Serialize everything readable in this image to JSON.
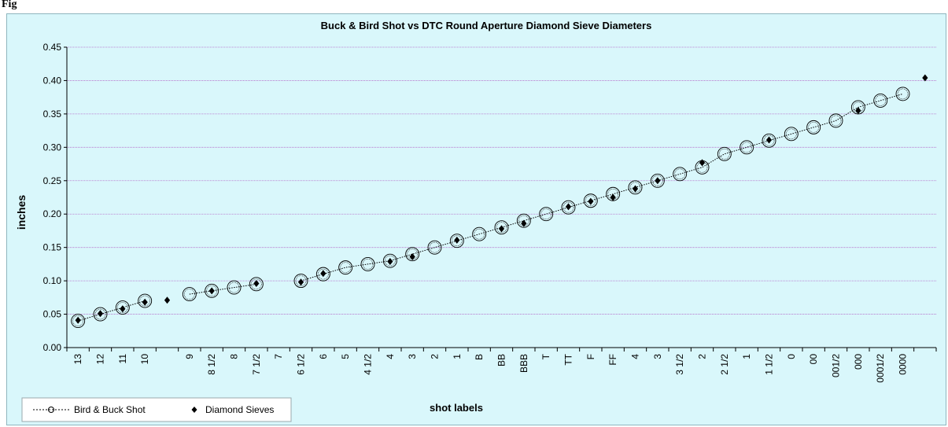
{
  "figure_label": "Fig",
  "chart_data": {
    "type": "line",
    "title": "Buck & Bird Shot vs DTC Round Aperture Diamond Sieve Diameters",
    "xlabel": "shot labels",
    "ylabel": "inches",
    "ylim": [
      0,
      0.45
    ],
    "y_ticks": [
      "0.00",
      "0.05",
      "0.10",
      "0.15",
      "0.20",
      "0.25",
      "0.30",
      "0.35",
      "0.40",
      "0.45"
    ],
    "grid": "horizontal",
    "legend_position": "bottom-left",
    "categories": [
      "13",
      "12",
      "11",
      "10",
      "",
      "9",
      "8 1/2",
      "8",
      "7 1/2",
      "7",
      "6 1/2",
      "6",
      "5",
      "4 1/2",
      "4",
      "3",
      "2",
      "1",
      "B",
      "BB",
      "BBB",
      "T",
      "TT",
      "F",
      "FF",
      "4",
      "3",
      "3 1/2",
      "2",
      "2 1/2",
      "1",
      "1 1/2",
      "0",
      "00",
      "001/2",
      "000",
      "0001/2",
      "0000",
      ""
    ],
    "series": [
      {
        "name": "Bird & Buck Shot",
        "marker": "open-circle",
        "color": "#000000",
        "values": [
          0.04,
          0.05,
          0.06,
          0.07,
          null,
          0.08,
          0.085,
          0.09,
          0.095,
          null,
          0.1,
          0.11,
          0.12,
          0.125,
          0.13,
          0.14,
          0.15,
          0.16,
          0.17,
          0.18,
          0.19,
          0.2,
          0.21,
          0.22,
          0.23,
          0.24,
          0.25,
          0.26,
          0.27,
          0.29,
          0.3,
          0.31,
          0.32,
          0.33,
          0.34,
          0.36,
          0.37,
          0.38,
          null
        ]
      },
      {
        "name": "Diamond Sieves",
        "marker": "diamond",
        "color": "#000000",
        "values": [
          0.041,
          0.051,
          0.058,
          0.068,
          0.071,
          null,
          0.085,
          null,
          0.096,
          null,
          0.098,
          0.111,
          null,
          null,
          0.129,
          0.136,
          null,
          0.161,
          null,
          0.178,
          0.186,
          null,
          0.211,
          0.219,
          0.225,
          0.238,
          0.25,
          null,
          0.277,
          null,
          null,
          0.311,
          null,
          null,
          null,
          0.355,
          null,
          null,
          0.404
        ]
      }
    ]
  }
}
